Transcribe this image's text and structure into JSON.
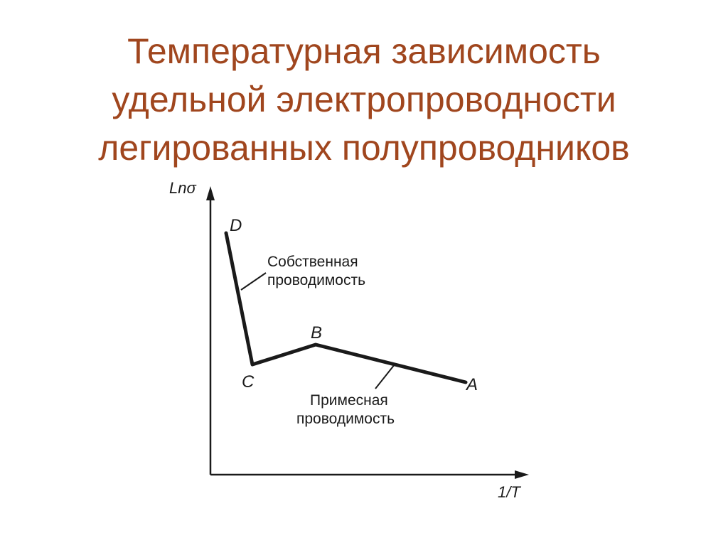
{
  "title": {
    "lines": [
      "Температурная зависимость",
      "удельной электропроводности",
      "легированных полупроводников"
    ]
  },
  "diagram": {
    "y_axis_label": "Lnσ",
    "x_axis_label": "1/T",
    "points": {
      "D": "D",
      "C": "C",
      "B": "B",
      "A": "A"
    },
    "intrinsic_label": {
      "line1": "Собственная",
      "line2": "проводимость"
    },
    "impurity_label": {
      "line1": "Примесная",
      "line2": "проводимость"
    },
    "colors": {
      "title": "#a0461e",
      "lines": "#1a1a1a"
    }
  }
}
